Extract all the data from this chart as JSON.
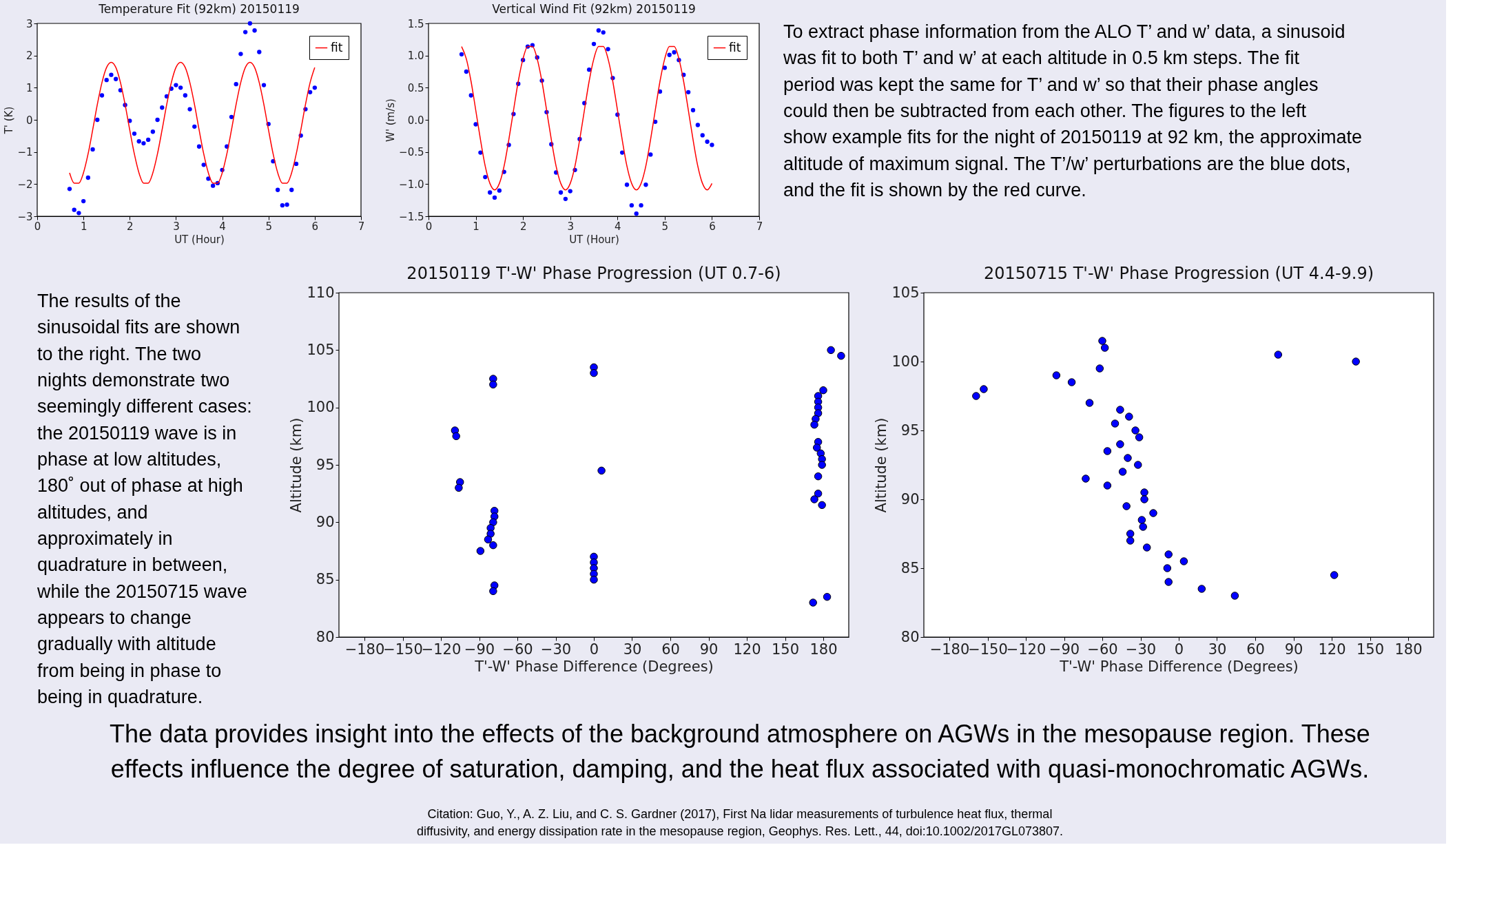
{
  "chart_data": [
    {
      "type": "scatter",
      "title": "Temperature Fit (92km) 20150119",
      "xlabel": "UT (Hour)",
      "ylabel": "T' (K)",
      "xlim": [
        0,
        7
      ],
      "xticks": [
        0,
        1,
        2,
        3,
        4,
        5,
        6,
        7
      ],
      "ylim": [
        -3,
        3
      ],
      "yticks": [
        -3,
        -2,
        -1,
        0,
        1,
        2,
        3
      ],
      "grid": false,
      "legend": "top right",
      "x": [
        0.7,
        0.8,
        0.9,
        1.0,
        1.1,
        1.2,
        1.3,
        1.4,
        1.5,
        1.6,
        1.7,
        1.8,
        1.9,
        2.0,
        2.1,
        2.2,
        2.3,
        2.4,
        2.5,
        2.6,
        2.7,
        2.8,
        2.9,
        3.0,
        3.1,
        3.2,
        3.3,
        3.4,
        3.5,
        3.6,
        3.7,
        3.8,
        3.9,
        4.0,
        4.1,
        4.2,
        4.3,
        4.4,
        4.5,
        4.6,
        4.7,
        4.8,
        4.9,
        5.0,
        5.1,
        5.2,
        5.3,
        5.4,
        5.5,
        5.6,
        5.7,
        5.8,
        5.9,
        6.0
      ],
      "series": [
        {
          "type": "scatter",
          "marker": "circle",
          "color": "#0000ff",
          "values": [
            -2.15,
            -2.8,
            -2.9,
            -2.53,
            -1.8,
            -0.92,
            0,
            0.76,
            1.24,
            1.4,
            1.27,
            0.92,
            0.46,
            -0.03,
            -0.43,
            -0.67,
            -0.73,
            -0.62,
            -0.37,
            0,
            0.38,
            0.73,
            0.97,
            1.08,
            1.0,
            0.76,
            0.33,
            -0.21,
            -0.83,
            -1.4,
            -1.83,
            -2.05,
            -1.97,
            -1.56,
            -0.83,
            0.09,
            1.11,
            2.05,
            2.73,
            3.0,
            2.78,
            2.11,
            1.08,
            -0.13,
            -1.29,
            -2.18,
            -2.66,
            -2.64,
            -2.18,
            -1.37,
            -0.49,
            0.33,
            0.86,
            1.0
          ]
        },
        {
          "type": "line",
          "name": "fit",
          "color": "#ff0000",
          "line_style": "solid",
          "marker": "none",
          "values": [
            -1.65,
            -1.97,
            -1.97,
            -1.65,
            -1.06,
            -0.31,
            0.48,
            1.16,
            1.63,
            1.79,
            1.63,
            1.16,
            0.48,
            -0.31,
            -1.06,
            -1.65,
            -1.97,
            -1.97,
            -1.65,
            -1.06,
            -0.31,
            0.48,
            1.16,
            1.63,
            1.79,
            1.63,
            1.16,
            0.48,
            -0.31,
            -1.06,
            -1.65,
            -1.97,
            -1.97,
            -1.65,
            -1.06,
            -0.31,
            0.48,
            1.16,
            1.63,
            1.79,
            1.63,
            1.16,
            0.48,
            -0.31,
            -1.06,
            -1.65,
            -1.97,
            -1.97,
            -1.65,
            -1.06,
            -0.31,
            0.48,
            1.16,
            1.63
          ]
        }
      ]
    },
    {
      "type": "scatter",
      "title": "Vertical Wind Fit (92km) 20150119",
      "xlabel": "UT (Hour)",
      "ylabel": "W' (m/s)",
      "xlim": [
        0,
        7
      ],
      "xticks": [
        0,
        1,
        2,
        3,
        4,
        5,
        6,
        7
      ],
      "ylim": [
        -1.5,
        1.5
      ],
      "yticks": [
        {
          "value": -1.5,
          "label": "−1.5"
        },
        {
          "value": -1.0,
          "label": "−1.0"
        },
        {
          "value": -0.5,
          "label": "−0.5"
        },
        {
          "value": 0,
          "label": "0.0"
        },
        {
          "value": 0.5,
          "label": "0.5"
        },
        {
          "value": 1.0,
          "label": "1.0"
        },
        {
          "value": 1.5,
          "label": "1.5"
        }
      ],
      "grid": false,
      "legend": "top right",
      "x": [
        0.7,
        0.8,
        0.9,
        1.0,
        1.1,
        1.2,
        1.3,
        1.4,
        1.5,
        1.6,
        1.7,
        1.8,
        1.9,
        2.0,
        2.1,
        2.2,
        2.3,
        2.4,
        2.5,
        2.6,
        2.7,
        2.8,
        2.9,
        3.0,
        3.1,
        3.2,
        3.3,
        3.4,
        3.5,
        3.6,
        3.7,
        3.8,
        3.9,
        4.0,
        4.1,
        4.2,
        4.3,
        4.4,
        4.5,
        4.6,
        4.7,
        4.8,
        4.9,
        5.0,
        5.1,
        5.2,
        5.3,
        5.4,
        5.5,
        5.6,
        5.7,
        5.8,
        5.9,
        6.0
      ],
      "series": [
        {
          "type": "scatter",
          "marker": "circle",
          "color": "#0000ff",
          "values": [
            1.02,
            0.75,
            0.38,
            -0.07,
            -0.51,
            -0.89,
            -1.13,
            -1.21,
            -1.1,
            -0.81,
            -0.39,
            0.09,
            0.56,
            0.93,
            1.14,
            1.16,
            0.97,
            0.61,
            0.12,
            -0.38,
            -0.82,
            -1.13,
            -1.23,
            -1.11,
            -0.78,
            -0.3,
            0.26,
            0.78,
            1.18,
            1.39,
            1.36,
            1.1,
            0.65,
            0.08,
            -0.51,
            -1.01,
            -1.33,
            -1.46,
            -1.33,
            -1.01,
            -0.54,
            -0.03,
            0.44,
            0.81,
            1.01,
            1.05,
            0.93,
            0.7,
            0.43,
            0.15,
            -0.08,
            -0.24,
            -0.34,
            -0.39
          ]
        },
        {
          "type": "line",
          "name": "fit",
          "color": "#ff0000",
          "line_style": "solid",
          "marker": "none",
          "values": [
            1.14,
            0.95,
            0.6,
            0.15,
            -0.31,
            -0.72,
            -0.99,
            -1.09,
            -0.99,
            -0.72,
            -0.31,
            0.15,
            0.6,
            0.95,
            1.14,
            1.14,
            0.95,
            0.6,
            0.15,
            -0.31,
            -0.72,
            -0.99,
            -1.09,
            -0.99,
            -0.72,
            -0.31,
            0.15,
            0.6,
            0.95,
            1.14,
            1.14,
            0.95,
            0.6,
            0.15,
            -0.31,
            -0.72,
            -0.99,
            -1.09,
            -0.99,
            -0.72,
            -0.31,
            0.15,
            0.6,
            0.95,
            1.14,
            1.14,
            0.95,
            0.6,
            0.15,
            -0.31,
            -0.72,
            -0.99,
            -1.09,
            -0.99
          ]
        }
      ]
    },
    {
      "type": "other",
      "annotations": [
        "To extract phase information from the ALO T’ and w’ data, a sinusoid was fit to both T’ and w’ at each altitude in 0.5 km steps. The fit period was kept the same for T’ and w’ so that their phase angles could then be subtracted from each other.  The figures to the left show example fits for the night of 20150119 at 92 km, the approximate altitude of maximum signal. The T’/w’ perturbations are the blue dots, and the fit is shown by the red curve."
      ]
    },
    {
      "type": "other",
      "annotations": [
        "The results of the sinusoidal fits are shown to the right. The two nights demonstrate two seemingly different cases: the 20150119 wave is in phase at low altitudes, 180˚ out of phase at high altitudes, and approximately in quadrature in between, while the 20150715 wave appears to change gradually with altitude from being in phase to being in quadrature."
      ]
    },
    {
      "type": "scatter",
      "title": "20150119 T'-W' Phase Progression (UT 0.7-6)",
      "xlabel": "T'-W' Phase Difference (Degrees)",
      "ylabel": "Altitude (km)",
      "xlim": [
        -200,
        200
      ],
      "xticks": [
        -180,
        -150,
        -120,
        -90,
        -60,
        -30,
        0,
        30,
        60,
        90,
        120,
        150,
        180
      ],
      "ylim": [
        80,
        110
      ],
      "yticks": [
        80,
        85,
        90,
        95,
        100,
        105,
        110
      ],
      "grid": false,
      "marker": "circle",
      "x": [
        186,
        194,
        0,
        0,
        -79,
        -79,
        180,
        176,
        176,
        176,
        176,
        174,
        173,
        -109,
        -108,
        176,
        175,
        178,
        179,
        179,
        6,
        176,
        -105,
        -106,
        176,
        173,
        179,
        -78,
        -78,
        -79,
        -81,
        -81,
        -83,
        -79,
        -89,
        0,
        0,
        0,
        0,
        0,
        -78,
        -79,
        183,
        172
      ],
      "series": [
        {
          "type": "scatter",
          "color": "#0000ff",
          "values": [
            105,
            104.5,
            103.5,
            103,
            102.5,
            102,
            101.5,
            101,
            100.5,
            100,
            99.5,
            99,
            98.5,
            98,
            97.5,
            97,
            96.5,
            96,
            95.5,
            95,
            94.5,
            94,
            93.5,
            93,
            92.5,
            92,
            91.5,
            91,
            90.5,
            90,
            89.5,
            89,
            88.5,
            88,
            87.5,
            87,
            86.5,
            86,
            85.5,
            85,
            84.5,
            84,
            83.5,
            83
          ]
        }
      ]
    },
    {
      "type": "scatter",
      "title": "20150715 T'-W' Phase Progression (UT 4.4-9.9)",
      "xlabel": "T'-W' Phase Difference (Degrees)",
      "ylabel": "Altitude (km)",
      "xlim": [
        -200,
        200
      ],
      "xticks": [
        -180,
        -150,
        -120,
        -90,
        -60,
        -30,
        0,
        30,
        60,
        90,
        120,
        150,
        180
      ],
      "ylim": [
        80,
        105
      ],
      "yticks": [
        80,
        85,
        90,
        95,
        100,
        105
      ],
      "grid": false,
      "marker": "circle",
      "x": [
        -60,
        -58,
        78,
        139,
        -62,
        -96,
        -84,
        -153,
        -159,
        -70,
        -46,
        -39,
        -50,
        -34,
        -31,
        -46,
        -56,
        -40,
        -32,
        -44,
        -73,
        -56,
        -27,
        -27,
        -41,
        -20,
        -29,
        -28,
        -38,
        -38,
        -25,
        -8,
        4,
        -9,
        122,
        -8,
        18,
        44
      ],
      "series": [
        {
          "type": "scatter",
          "color": "#0000ff",
          "values": [
            101.5,
            101,
            100.5,
            100,
            99.5,
            99,
            98.5,
            98,
            97.5,
            97,
            96.5,
            96,
            95.5,
            95,
            94.5,
            94,
            93.5,
            93,
            92.5,
            92,
            91.5,
            91,
            90.5,
            90,
            89.5,
            89,
            88.5,
            88,
            87.5,
            87,
            86.5,
            86,
            85.5,
            85,
            84.5,
            84,
            83.5,
            83
          ]
        }
      ]
    },
    {
      "type": "other",
      "annotations": [
        "The data provides insight into the effects of the background atmosphere on AGWs in the mesopause region. These effects influence the degree of saturation, damping, and the heat flux associated with quasi-monochromatic AGWs.",
        "Citation: Guo, Y., A. Z. Liu, and C. S. Gardner (2017), First Na lidar measurements of turbulence heat flux, thermal diffusivity, and energy dissipation rate in the mesopause region, Geophys. Res. Lett., 44, doi:10.1002/2017GL073807."
      ]
    }
  ]
}
